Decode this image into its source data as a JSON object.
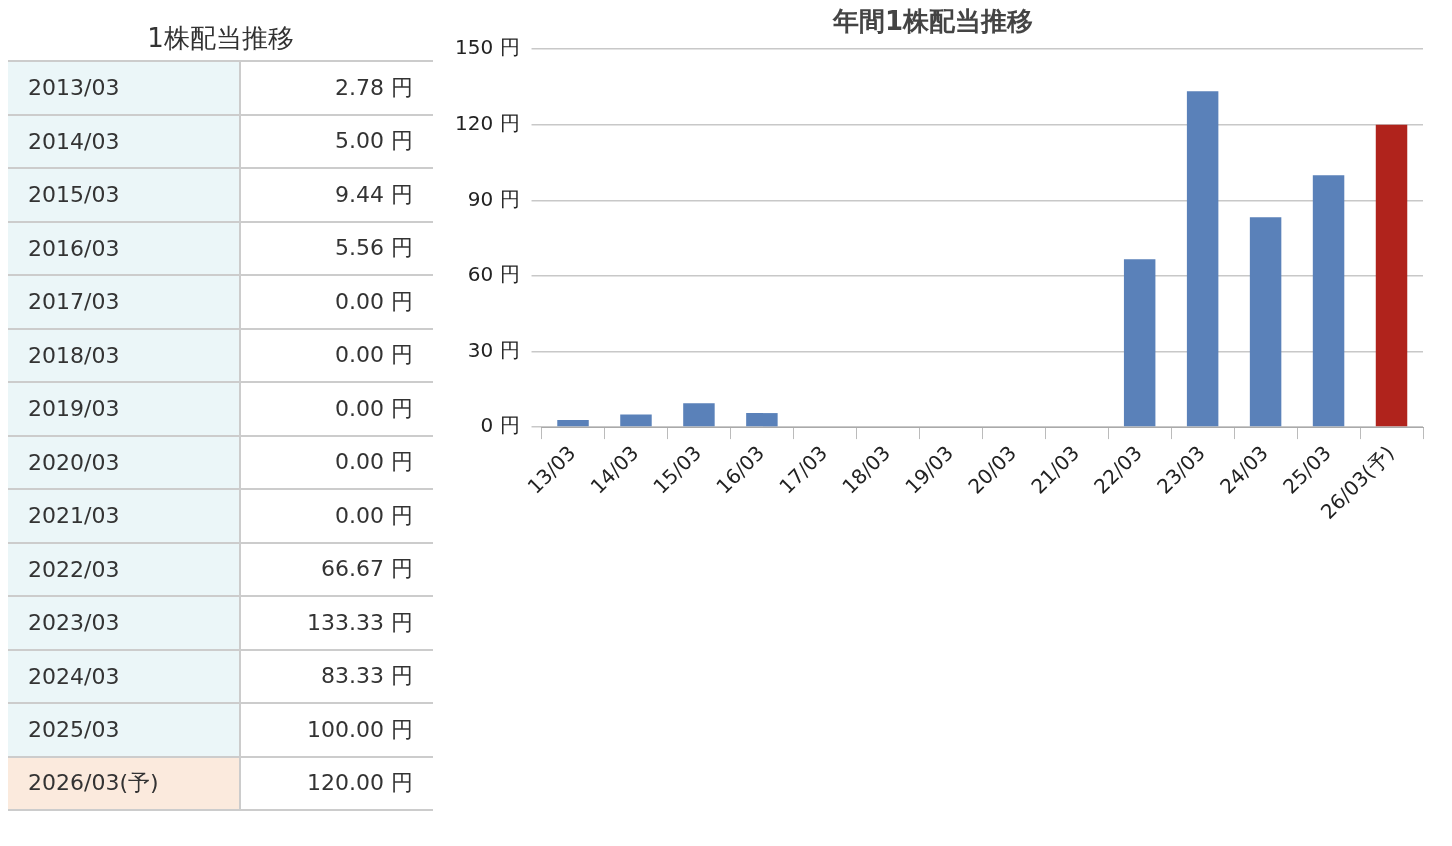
{
  "chart_data": [
    {
      "type": "other",
      "title": "1株配当推移",
      "categories": [
        "2013/03",
        "2014/03",
        "2015/03",
        "2016/03",
        "2017/03",
        "2018/03",
        "2019/03",
        "2020/03",
        "2021/03",
        "2022/03",
        "2023/03",
        "2024/03",
        "2025/03",
        "2026/03(予)"
      ],
      "value_labels": [
        "2.78 円",
        "5.00 円",
        "9.44 円",
        "5.56 円",
        "0.00 円",
        "0.00 円",
        "0.00 円",
        "0.00 円",
        "0.00 円",
        "66.67 円",
        "133.33 円",
        "83.33 円",
        "100.00 円",
        "120.00 円"
      ],
      "colors": [
        "#ebf6f8",
        "#ebf6f8",
        "#ebf6f8",
        "#ebf6f8",
        "#ebf6f8",
        "#ebf6f8",
        "#ebf6f8",
        "#ebf6f8",
        "#ebf6f8",
        "#ebf6f8",
        "#ebf6f8",
        "#ebf6f8",
        "#ebf6f8",
        "#fbeadd"
      ]
    },
    {
      "type": "bar",
      "title": "年間1株配当推移",
      "categories": [
        "13/03",
        "14/03",
        "15/03",
        "16/03",
        "17/03",
        "18/03",
        "19/03",
        "20/03",
        "21/03",
        "22/03",
        "23/03",
        "24/03",
        "25/03",
        "26/03(予)"
      ],
      "values": [
        2.78,
        5.0,
        9.44,
        5.56,
        0.0,
        0.0,
        0.0,
        0.0,
        0.0,
        66.67,
        133.33,
        83.33,
        100.0,
        120.0
      ],
      "colors": [
        "#5a81b9",
        "#5a81b9",
        "#5a81b9",
        "#5a81b9",
        "#5a81b9",
        "#5a81b9",
        "#5a81b9",
        "#5a81b9",
        "#5a81b9",
        "#5a81b9",
        "#5a81b9",
        "#5a81b9",
        "#5a81b9",
        "#b0231c"
      ],
      "ylim": [
        0,
        150
      ],
      "yticks": [
        {
          "value": 0,
          "label": "0 円"
        },
        {
          "value": 30,
          "label": "30 円"
        },
        {
          "value": 60,
          "label": "60 円"
        },
        {
          "value": 90,
          "label": "90 円"
        },
        {
          "value": 120,
          "label": "120 円"
        },
        {
          "value": 150,
          "label": "150 円"
        }
      ],
      "grid": "y",
      "legend": false
    }
  ]
}
